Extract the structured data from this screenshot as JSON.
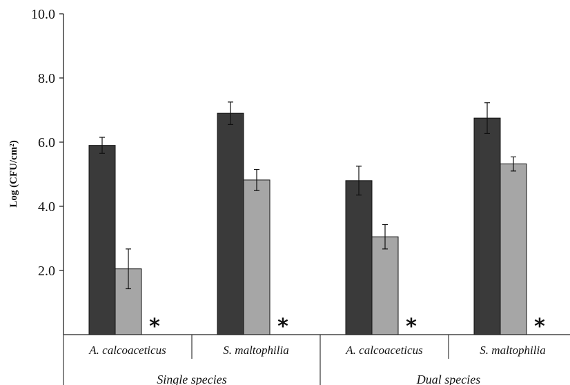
{
  "chart_data": {
    "type": "bar",
    "title": "",
    "ylabel": "Log (CFU/cm²)",
    "xlabel": "",
    "ylim": [
      0,
      10
    ],
    "ytick_values": [
      2,
      4,
      6,
      8,
      10
    ],
    "ytick_labels": [
      "2.0",
      "4.0",
      "6.0",
      "8.0",
      "10.0"
    ],
    "groups": [
      {
        "label": "Single species",
        "categories": [
          "A. calcoaceticus",
          "S. maltophilia"
        ]
      },
      {
        "label": "Dual species",
        "categories": [
          "A. calcoaceticus",
          "S. maltophilia"
        ]
      }
    ],
    "categories": [
      "A. calcoaceticus",
      "S. maltophilia",
      "A. calcoaceticus",
      "S. maltophilia"
    ],
    "series": [
      {
        "values": [
          5.9,
          6.9,
          4.8,
          6.75
        ],
        "errors": [
          0.25,
          0.35,
          0.45,
          0.48
        ],
        "color": "#3a3a3a"
      },
      {
        "values": [
          2.05,
          4.82,
          3.05,
          5.32
        ],
        "errors": [
          0.62,
          0.33,
          0.38,
          0.22
        ],
        "color": "#a6a6a6"
      },
      {
        "values": [
          0,
          0,
          0,
          0
        ],
        "markers": [
          "*",
          "*",
          "*",
          "*"
        ]
      }
    ],
    "grid": false,
    "legend": "none"
  }
}
